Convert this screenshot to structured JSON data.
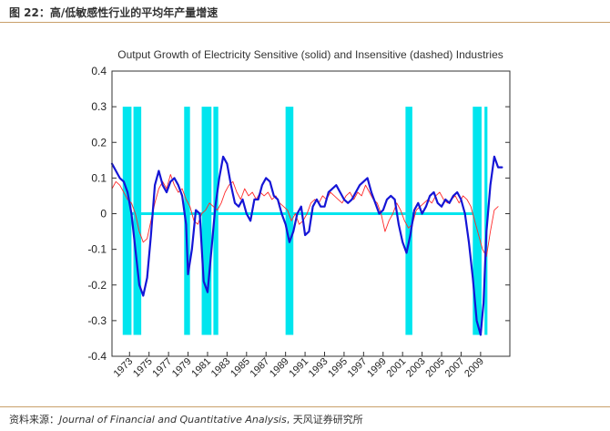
{
  "header": {
    "title": "图 22：高/低敏感性行业的平均年产量增速"
  },
  "footer": {
    "source_label": "资料来源：",
    "journal": "Journal of Financial and Quantitative Analysis",
    "separator": ", ",
    "firm": "天风证券研究所"
  },
  "colors": {
    "sensitive": "#1515d6",
    "insensitive": "#ff2a2a",
    "recession": "#00e5ee",
    "zero_line": "#00e5ee",
    "accent": "#c9a06a"
  },
  "chart_data": {
    "type": "line",
    "title": "Output Growth of Electricity Sensitive (solid) and Insensitive (dashed) Industries",
    "xlabel": "",
    "ylabel": "",
    "xlim": [
      1971.2,
      2012.0
    ],
    "ylim": [
      -0.4,
      0.4
    ],
    "yticks": [
      -0.4,
      -0.3,
      -0.2,
      -0.1,
      0,
      0.1,
      0.2,
      0.3,
      0.4
    ],
    "ytick_labels": [
      "-0.4",
      "-0.3",
      "-0.2",
      "-0.1",
      "0",
      "0.1",
      "0.2",
      "0.3",
      "0.4"
    ],
    "xticks": [
      1973,
      1975,
      1977,
      1979,
      1981,
      1983,
      1985,
      1987,
      1989,
      1991,
      1993,
      1995,
      1997,
      1999,
      2001,
      2003,
      2005,
      2007,
      2009
    ],
    "xtick_labels": [
      "1973",
      "1975",
      "1977",
      "1979",
      "1981",
      "1983",
      "1985",
      "1987",
      "1989",
      "1991",
      "1993",
      "1995",
      "1997",
      "1999",
      "2001",
      "2003",
      "2005",
      "2007",
      "2009"
    ],
    "grid": false,
    "legend": "none",
    "recession_bands": [
      [
        1972.3,
        1973.2
      ],
      [
        1973.4,
        1974.2
      ],
      [
        1978.6,
        1979.2
      ],
      [
        1980.4,
        1981.4
      ],
      [
        1981.6,
        1982.1
      ],
      [
        1989.0,
        1989.8
      ],
      [
        2001.3,
        2002.0
      ],
      [
        2008.2,
        2009.1
      ],
      [
        2009.4,
        2009.7
      ]
    ],
    "zero_line": 0,
    "series": [
      {
        "name": "Electricity Sensitive",
        "style": "solid",
        "x": [
          1971.2,
          1971.6,
          1972.0,
          1972.4,
          1972.8,
          1973.2,
          1973.6,
          1974.0,
          1974.4,
          1974.8,
          1975.2,
          1975.6,
          1976.0,
          1976.4,
          1976.8,
          1977.2,
          1977.6,
          1978.0,
          1978.4,
          1978.8,
          1979.0,
          1979.4,
          1979.8,
          1980.2,
          1980.6,
          1981.0,
          1981.4,
          1981.8,
          1982.2,
          1982.6,
          1983.0,
          1983.4,
          1983.8,
          1984.2,
          1984.6,
          1985.0,
          1985.4,
          1985.8,
          1986.2,
          1986.6,
          1987.0,
          1987.4,
          1987.8,
          1988.2,
          1988.6,
          1989.0,
          1989.4,
          1989.8,
          1990.2,
          1990.6,
          1991.0,
          1991.4,
          1991.8,
          1992.2,
          1992.6,
          1993.0,
          1993.4,
          1993.8,
          1994.2,
          1994.6,
          1995.0,
          1995.4,
          1995.8,
          1996.2,
          1996.6,
          1997.0,
          1997.4,
          1997.8,
          1998.2,
          1998.6,
          1999.0,
          1999.4,
          1999.8,
          2000.2,
          2000.6,
          2001.0,
          2001.4,
          2001.8,
          2002.2,
          2002.6,
          2003.0,
          2003.4,
          2003.8,
          2004.2,
          2004.6,
          2005.0,
          2005.4,
          2005.8,
          2006.2,
          2006.6,
          2007.0,
          2007.4,
          2007.8,
          2008.2,
          2008.6,
          2009.0,
          2009.3,
          2009.6,
          2010.0,
          2010.4,
          2010.8,
          2011.2
        ],
        "values": [
          0.14,
          0.12,
          0.1,
          0.09,
          0.06,
          0.0,
          -0.1,
          -0.2,
          -0.23,
          -0.18,
          -0.06,
          0.08,
          0.12,
          0.08,
          0.06,
          0.09,
          0.1,
          0.08,
          0.05,
          -0.03,
          -0.17,
          -0.1,
          0.01,
          0.0,
          -0.19,
          -0.22,
          -0.1,
          0.02,
          0.1,
          0.16,
          0.14,
          0.08,
          0.03,
          0.02,
          0.04,
          0.0,
          -0.02,
          0.04,
          0.04,
          0.08,
          0.1,
          0.09,
          0.05,
          0.04,
          0.0,
          -0.03,
          -0.08,
          -0.05,
          0.0,
          0.02,
          -0.06,
          -0.05,
          0.02,
          0.04,
          0.02,
          0.02,
          0.06,
          0.07,
          0.08,
          0.06,
          0.04,
          0.03,
          0.04,
          0.06,
          0.08,
          0.09,
          0.1,
          0.06,
          0.03,
          0.0,
          0.01,
          0.04,
          0.05,
          0.04,
          -0.03,
          -0.08,
          -0.11,
          -0.06,
          0.01,
          0.03,
          0.0,
          0.02,
          0.05,
          0.06,
          0.03,
          0.02,
          0.04,
          0.03,
          0.05,
          0.06,
          0.04,
          0.0,
          -0.08,
          -0.18,
          -0.3,
          -0.34,
          -0.25,
          -0.05,
          0.08,
          0.16,
          0.13,
          0.13
        ]
      },
      {
        "name": "Electricity Insensitive",
        "style": "dashed",
        "x": [
          1971.2,
          1971.6,
          1972.0,
          1972.4,
          1972.8,
          1973.2,
          1973.6,
          1974.0,
          1974.4,
          1974.8,
          1975.2,
          1975.6,
          1976.0,
          1976.4,
          1976.8,
          1977.2,
          1977.6,
          1978.0,
          1978.4,
          1978.8,
          1979.2,
          1979.6,
          1980.0,
          1980.4,
          1980.8,
          1981.2,
          1981.6,
          1982.0,
          1982.4,
          1982.8,
          1983.2,
          1983.6,
          1984.0,
          1984.4,
          1984.8,
          1985.2,
          1985.6,
          1986.0,
          1986.4,
          1986.8,
          1987.2,
          1987.6,
          1988.0,
          1988.4,
          1988.8,
          1989.2,
          1989.6,
          1990.0,
          1990.4,
          1990.8,
          1991.2,
          1991.6,
          1992.0,
          1992.4,
          1992.8,
          1993.2,
          1993.6,
          1994.0,
          1994.4,
          1994.8,
          1995.2,
          1995.6,
          1996.0,
          1996.4,
          1996.8,
          1997.2,
          1997.6,
          1998.0,
          1998.4,
          1998.8,
          1999.2,
          1999.6,
          2000.0,
          2000.4,
          2000.8,
          2001.2,
          2001.6,
          2002.0,
          2002.4,
          2002.8,
          2003.2,
          2003.6,
          2004.0,
          2004.4,
          2004.8,
          2005.2,
          2005.6,
          2006.0,
          2006.4,
          2006.8,
          2007.2,
          2007.6,
          2008.0,
          2008.4,
          2008.8,
          2009.2,
          2009.6,
          2010.0,
          2010.4,
          2010.8
        ],
        "values": [
          0.07,
          0.09,
          0.08,
          0.06,
          0.04,
          0.03,
          0.0,
          -0.05,
          -0.08,
          -0.07,
          -0.02,
          0.03,
          0.07,
          0.09,
          0.07,
          0.11,
          0.08,
          0.06,
          0.07,
          0.04,
          0.02,
          -0.02,
          -0.03,
          0.0,
          0.01,
          0.03,
          0.02,
          0.01,
          0.03,
          0.06,
          0.08,
          0.09,
          0.06,
          0.04,
          0.07,
          0.05,
          0.06,
          0.04,
          0.06,
          0.05,
          0.06,
          0.04,
          0.05,
          0.03,
          0.02,
          0.01,
          -0.02,
          0.0,
          -0.03,
          -0.02,
          0.0,
          0.03,
          0.04,
          0.03,
          0.05,
          0.04,
          0.06,
          0.05,
          0.04,
          0.03,
          0.05,
          0.06,
          0.04,
          0.06,
          0.05,
          0.08,
          0.06,
          0.04,
          0.03,
          0.0,
          -0.05,
          -0.02,
          0.0,
          0.03,
          0.01,
          -0.02,
          -0.04,
          -0.03,
          0.01,
          0.02,
          0.03,
          0.04,
          0.03,
          0.05,
          0.06,
          0.04,
          0.03,
          0.04,
          0.05,
          0.03,
          0.05,
          0.04,
          0.02,
          -0.02,
          -0.06,
          -0.1,
          -0.12,
          -0.05,
          0.01,
          0.02
        ]
      }
    ]
  }
}
